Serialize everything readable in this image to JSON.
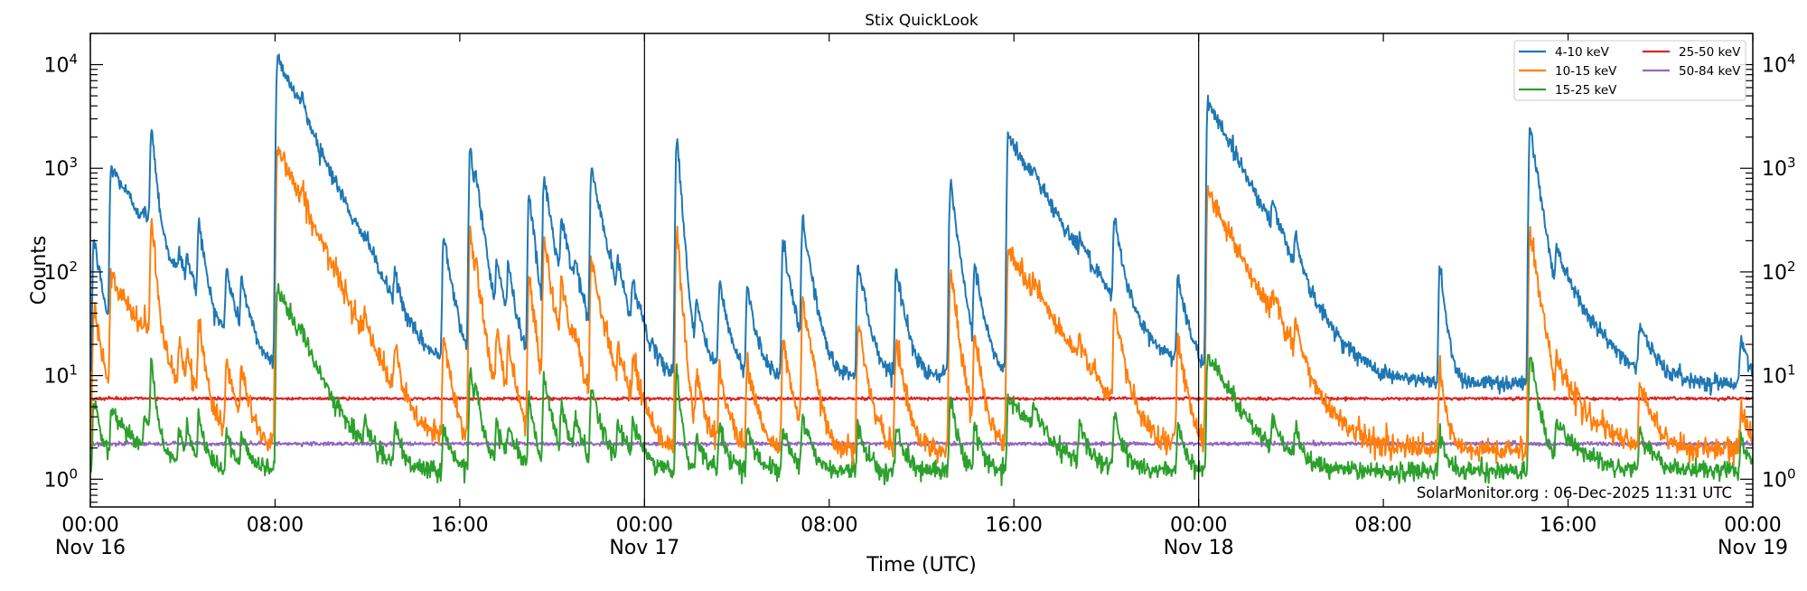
{
  "chart_data": {
    "type": "line",
    "title": "Stix QuickLook",
    "xlabel": "Time (UTC)",
    "ylabel": "Counts",
    "yscale": "log",
    "ylim": [
      0.54,
      20000
    ],
    "xlim_hours_from_start": [
      0,
      72
    ],
    "grid": false,
    "legend_position": "top-right",
    "x_ticks": [
      {
        "time": "00:00",
        "date": "Nov 16"
      },
      {
        "time": "08:00",
        "date": ""
      },
      {
        "time": "16:00",
        "date": ""
      },
      {
        "time": "00:00",
        "date": "Nov 17"
      },
      {
        "time": "08:00",
        "date": ""
      },
      {
        "time": "16:00",
        "date": ""
      },
      {
        "time": "00:00",
        "date": "Nov 18"
      },
      {
        "time": "08:00",
        "date": ""
      },
      {
        "time": "16:00",
        "date": ""
      },
      {
        "time": "00:00",
        "date": "Nov 19"
      }
    ],
    "y_tick_exponents": [
      0,
      1,
      2,
      3,
      4
    ],
    "day_boundaries": [
      "Nov 17 00:00",
      "Nov 18 00:00"
    ],
    "series": [
      {
        "name": "4-10 keV",
        "color": "#1f77b4",
        "baseline": 9
      },
      {
        "name": "10-15 keV",
        "color": "#ff7f0e",
        "baseline": 1.9
      },
      {
        "name": "15-25 keV",
        "color": "#2ca02c",
        "baseline": 1.2
      },
      {
        "name": "25-50 keV",
        "color": "#d62728",
        "baseline": 6
      },
      {
        "name": "50-84 keV",
        "color": "#9467bd",
        "baseline": 2.2
      }
    ],
    "events_columns": [
      "hour",
      "4-10 keV peak",
      "10-15 keV peak",
      "15-25 keV peak",
      "decay_hours"
    ],
    "events": [
      [
        0.15,
        200,
        50,
        5,
        0.3
      ],
      [
        0.9,
        1000,
        80,
        3,
        1.2
      ],
      [
        2.35,
        80,
        10,
        2,
        0.3
      ],
      [
        2.65,
        2500,
        300,
        12,
        0.15
      ],
      [
        3.85,
        60,
        10,
        1.5,
        0.2
      ],
      [
        4.2,
        60,
        8,
        1.5,
        0.2
      ],
      [
        4.7,
        280,
        30,
        3,
        0.2
      ],
      [
        5.9,
        80,
        10,
        1.5,
        0.3
      ],
      [
        6.55,
        60,
        8,
        1.5,
        0.3
      ],
      [
        8.1,
        12000,
        1600,
        70,
        0.9
      ],
      [
        9.15,
        1500,
        140,
        8,
        0.15
      ],
      [
        11.9,
        80,
        20,
        2,
        0.2
      ],
      [
        13.2,
        50,
        12,
        2,
        0.2
      ],
      [
        15.3,
        220,
        20,
        2,
        0.3
      ],
      [
        16.45,
        1500,
        250,
        10,
        0.2
      ],
      [
        16.7,
        500,
        60,
        4,
        0.3
      ],
      [
        17.6,
        100,
        20,
        2,
        0.3
      ],
      [
        18.1,
        80,
        15,
        2,
        0.3
      ],
      [
        19.0,
        600,
        100,
        5,
        0.2
      ],
      [
        19.65,
        800,
        200,
        8,
        0.3
      ],
      [
        20.4,
        250,
        60,
        3,
        0.4
      ],
      [
        21.0,
        60,
        10,
        2,
        0.3
      ],
      [
        21.7,
        950,
        120,
        6,
        0.4
      ],
      [
        22.85,
        60,
        10,
        2,
        0.4
      ],
      [
        23.5,
        50,
        10,
        2,
        0.4
      ],
      [
        25.4,
        2000,
        250,
        10,
        0.15
      ],
      [
        26.25,
        40,
        8,
        1.5,
        0.3
      ],
      [
        27.25,
        70,
        10,
        2,
        0.3
      ],
      [
        28.45,
        60,
        12,
        2,
        0.3
      ],
      [
        30.0,
        180,
        20,
        2,
        0.3
      ],
      [
        30.85,
        300,
        50,
        3,
        0.3
      ],
      [
        33.25,
        120,
        30,
        2,
        0.3
      ],
      [
        34.9,
        100,
        20,
        2,
        0.3
      ],
      [
        37.25,
        700,
        100,
        5,
        0.25
      ],
      [
        38.3,
        100,
        20,
        2,
        0.3
      ],
      [
        39.75,
        2000,
        160,
        5,
        1.2
      ],
      [
        40.85,
        200,
        25,
        2,
        0.3
      ],
      [
        42.85,
        60,
        10,
        2,
        0.3
      ],
      [
        44.35,
        270,
        40,
        3,
        0.3
      ],
      [
        47.1,
        80,
        20,
        2,
        0.3
      ],
      [
        48.4,
        4500,
        600,
        15,
        1.0
      ],
      [
        51.2,
        200,
        30,
        2,
        0.3
      ],
      [
        52.2,
        130,
        20,
        2,
        0.2
      ],
      [
        58.45,
        110,
        10,
        2,
        0.2
      ],
      [
        62.35,
        2500,
        250,
        15,
        0.3
      ],
      [
        63.5,
        120,
        9,
        2,
        1.0
      ],
      [
        67.1,
        20,
        6,
        1.5,
        0.5
      ],
      [
        71.5,
        15,
        3,
        1.3,
        0.3
      ]
    ],
    "annotation": "SolarMonitor.org : 06-Dec-2025 11:31 UTC"
  }
}
